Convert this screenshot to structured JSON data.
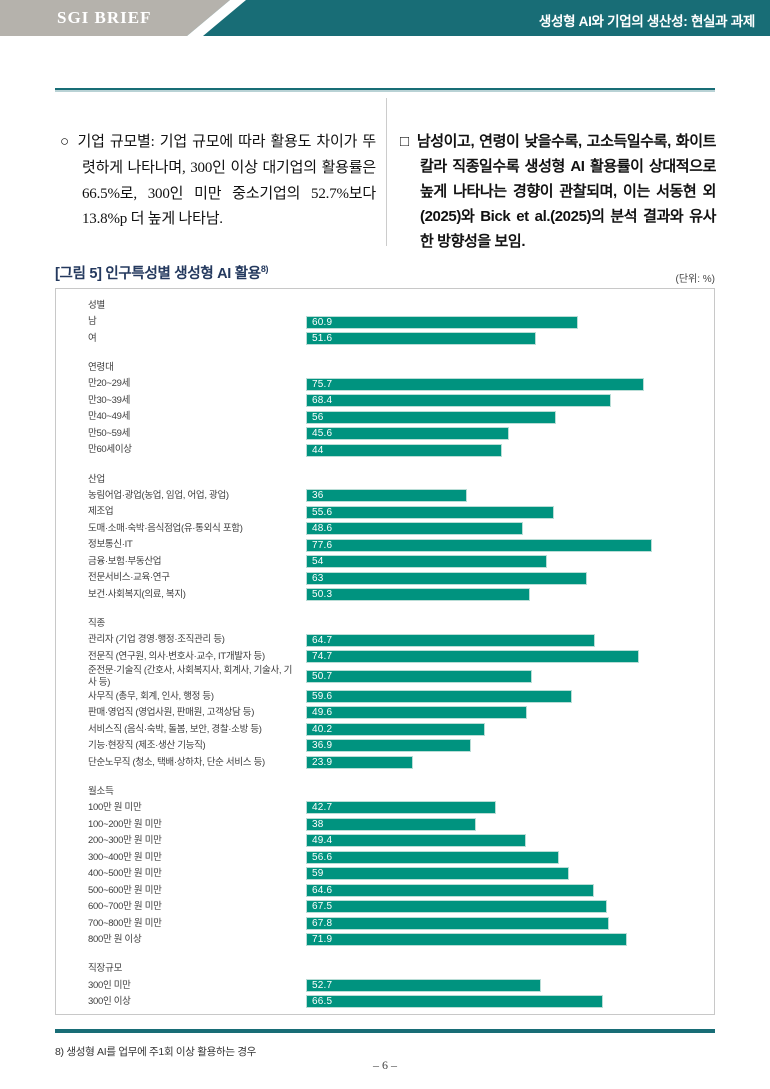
{
  "header": {
    "brand": "SGI BRIEF",
    "title": "생성형 AI와 기업의 생산성: 현실과 과제"
  },
  "columns": {
    "left": {
      "marker": "○",
      "text": "기업 규모별: 기업 규모에 따라 활용도 차이가 뚜렷하게 나타나며, 300인 이상 대기업의 활용률은 66.5%로, 300인 미만 중소기업의 52.7%보다 13.8%p 더 높게 나타남."
    },
    "right": {
      "marker": "□",
      "text": "남성이고, 연령이 낮을수록, 고소득일수록, 화이트칼라 직종일수록 생성형 AI 활용률이 상대적으로 높게 나타나는 경향이 관찰되며, 이는 서동현 외(2025)와 Bick et al.(2025)의 분석 결과와 유사한 방향성을 보임."
    }
  },
  "figure": {
    "title": "[그림 5] 인구특성별 생성형 AI 활용",
    "title_superscript": "8)",
    "unit_note": "(단위: %)"
  },
  "chart_data": {
    "type": "bar",
    "orientation": "horizontal",
    "unit": "%",
    "bar_color": "#00937f",
    "xlim": [
      0,
      91
    ],
    "grid": false,
    "legend": "none",
    "groups": [
      {
        "label": "성별",
        "items": [
          {
            "label": "남",
            "value": 60.9
          },
          {
            "label": "여",
            "value": 51.6
          }
        ]
      },
      {
        "label": "연령대",
        "items": [
          {
            "label": "만20~29세",
            "value": 75.7
          },
          {
            "label": "만30~39세",
            "value": 68.4
          },
          {
            "label": "만40~49세",
            "value": 56
          },
          {
            "label": "만50~59세",
            "value": 45.6
          },
          {
            "label": "만60세이상",
            "value": 44
          }
        ]
      },
      {
        "label": "산업",
        "items": [
          {
            "label": "농림어업·광업(농업, 임업, 어업, 광업)",
            "value": 36
          },
          {
            "label": "제조업",
            "value": 55.6
          },
          {
            "label": "도매·소매·숙박·음식점업(유·통외식 포함)",
            "value": 48.6
          },
          {
            "label": "정보통신·IT",
            "value": 77.6
          },
          {
            "label": "금융·보험·부동산업",
            "value": 54
          },
          {
            "label": "전문서비스·교육·연구",
            "value": 63
          },
          {
            "label": "보건·사회복지(의료, 복지)",
            "value": 50.3
          }
        ]
      },
      {
        "label": "직종",
        "items": [
          {
            "label": "관리자 (기업 경영·행정·조직관리 등)",
            "value": 64.7
          },
          {
            "label": "전문직 (연구원, 의사·변호사·교수, IT개발자 등)",
            "value": 74.7
          },
          {
            "label": "준전문·기술직 (간호사, 사회복지사, 회계사, 기술사, 기사 등)",
            "value": 50.7
          },
          {
            "label": "사무직 (총무, 회계, 인사, 행정 등)",
            "value": 59.6
          },
          {
            "label": "판매·영업직 (영업사원, 판매원, 고객상담 등)",
            "value": 49.6
          },
          {
            "label": "서비스직 (음식·숙박, 돌봄, 보안, 경찰·소방 등)",
            "value": 40.2
          },
          {
            "label": "기능·현장직 (제조·생산 기능직)",
            "value": 36.9
          },
          {
            "label": "단순노무직 (청소, 택배·상하차, 단순 서비스 등)",
            "value": 23.9
          }
        ]
      },
      {
        "label": "월소득",
        "items": [
          {
            "label": "100만 원 미만",
            "value": 42.7
          },
          {
            "label": "100~200만 원 미만",
            "value": 38
          },
          {
            "label": "200~300만 원 미만",
            "value": 49.4
          },
          {
            "label": "300~400만 원 미만",
            "value": 56.6
          },
          {
            "label": "400~500만 원 미만",
            "value": 59
          },
          {
            "label": "500~600만 원 미만",
            "value": 64.6
          },
          {
            "label": "600~700만 원 미만",
            "value": 67.5
          },
          {
            "label": "700~800만 원 미만",
            "value": 67.8
          },
          {
            "label": "800만 원 이상",
            "value": 71.9
          }
        ]
      },
      {
        "label": "직장규모",
        "items": [
          {
            "label": "300인 미만",
            "value": 52.7
          },
          {
            "label": "300인 이상",
            "value": 66.5
          }
        ]
      }
    ]
  },
  "footer": {
    "footnote": "8) 생성형 AI를 업무에 주1회 이상 활용하는 경우",
    "page_number": "– 6 –"
  },
  "colors": {
    "header_teal": "#186d76",
    "header_gray": "#b5b2ac",
    "bar_green": "#00937f",
    "title_navy": "#24395e"
  }
}
